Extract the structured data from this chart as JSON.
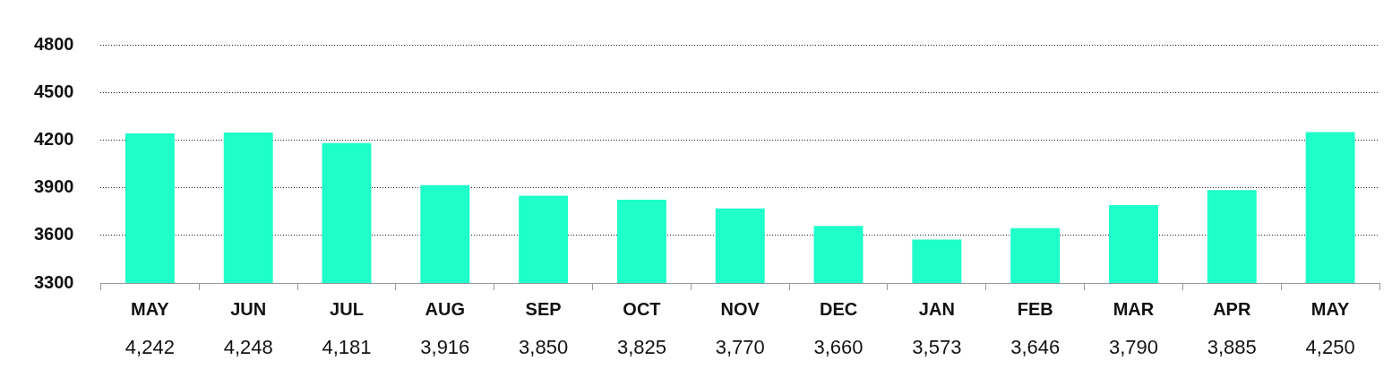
{
  "chart_data": {
    "type": "bar",
    "categories": [
      "MAY",
      "JUN",
      "JUL",
      "AUG",
      "SEP",
      "OCT",
      "NOV",
      "DEC",
      "JAN",
      "FEB",
      "MAR",
      "APR",
      "MAY"
    ],
    "values": [
      4242,
      4248,
      4181,
      3916,
      3850,
      3825,
      3770,
      3660,
      3573,
      3646,
      3790,
      3885,
      4250
    ],
    "value_labels": [
      "4,242",
      "4,248",
      "4,181",
      "3,916",
      "3,850",
      "3,825",
      "3,770",
      "3,660",
      "3,573",
      "3,646",
      "3,790",
      "3,885",
      "4,250"
    ],
    "color": "#1effc9",
    "ylim": [
      3300,
      4800
    ],
    "yticks": [
      3300,
      3600,
      3900,
      4200,
      4500,
      4800
    ],
    "grid": "y",
    "legend": false
  }
}
